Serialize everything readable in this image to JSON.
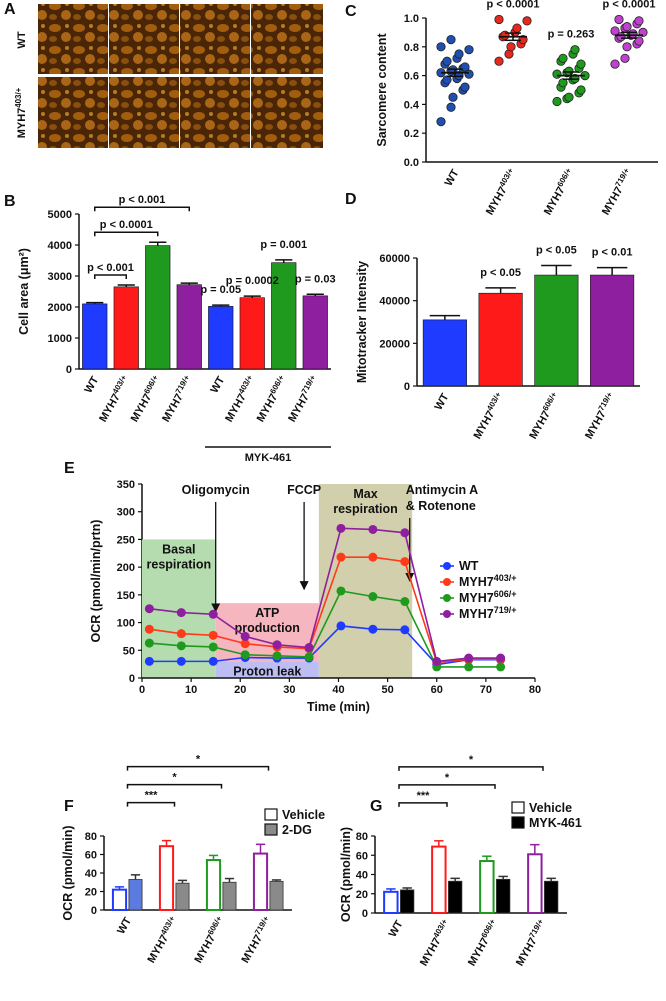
{
  "image_panel": {
    "panel_label": "A",
    "row_labels": [
      "WT",
      "MYH7403/+"
    ]
  },
  "chart_data": [
    {
      "type": "bar",
      "panel_label": "B",
      "y_label": "Cell area (μm²)",
      "categories": [
        "WT",
        "MYH7403/+",
        "MYH7606/+",
        "MYH7719/+",
        "WT",
        "MYH7403/+",
        "MYH7606/+",
        "MYH7719/+"
      ],
      "values": [
        2100,
        2650,
        3980,
        2720,
        2020,
        2300,
        3430,
        2360
      ],
      "errors": [
        40,
        60,
        110,
        50,
        40,
        50,
        90,
        50
      ],
      "colors": [
        "#1f3bff",
        "#ff1a1a",
        "#1f9a1f",
        "#8e1f9e",
        "#1f3bff",
        "#ff1a1a",
        "#1f9a1f",
        "#8e1f9e"
      ],
      "ylim": [
        0,
        5000
      ],
      "yticks": [
        0,
        1000,
        2000,
        3000,
        4000,
        5000
      ],
      "brackets": [
        {
          "text": "p < 0.001",
          "from": 0,
          "to": 1
        },
        {
          "text": "p < 0.0001",
          "from": 0,
          "to": 2
        },
        {
          "text": "p < 0.001",
          "from": 0,
          "to": 3
        }
      ],
      "labels": [
        {
          "text": "p = 0.05",
          "category": 4
        },
        {
          "text": "p = 0.0002",
          "category": 5
        },
        {
          "text": "p = 0.001",
          "category": 6
        },
        {
          "text": "p = 0.03",
          "category": 7
        }
      ],
      "group": {
        "text": "MYK-461",
        "from": 4,
        "to": 7
      }
    },
    {
      "type": "strip",
      "panel_label": "C",
      "y_label": "Sarcomere content",
      "categories": [
        "WT",
        "MYH7403/+",
        "MYH7606/+",
        "MYH7719/+"
      ],
      "colors": [
        "#1f4fb0",
        "#e8281e",
        "#1f9a1f",
        "#c040d0"
      ],
      "points": [
        [
          0.28,
          0.38,
          0.45,
          0.5,
          0.52,
          0.55,
          0.57,
          0.58,
          0.6,
          0.61,
          0.62,
          0.63,
          0.64,
          0.65,
          0.66,
          0.68,
          0.7,
          0.72,
          0.75,
          0.78,
          0.8,
          0.85
        ],
        [
          0.7,
          0.75,
          0.8,
          0.82,
          0.85,
          0.87,
          0.88,
          0.9,
          0.93,
          0.98,
          0.99
        ],
        [
          0.42,
          0.44,
          0.45,
          0.48,
          0.5,
          0.52,
          0.55,
          0.57,
          0.58,
          0.6,
          0.61,
          0.62,
          0.63,
          0.65,
          0.68,
          0.7,
          0.72,
          0.75,
          0.78
        ],
        [
          0.68,
          0.72,
          0.8,
          0.82,
          0.84,
          0.86,
          0.87,
          0.88,
          0.89,
          0.9,
          0.91,
          0.93,
          0.94,
          0.96,
          0.98,
          0.99
        ]
      ],
      "means": [
        0.62,
        0.87,
        0.6,
        0.88
      ],
      "sems": [
        0.025,
        0.025,
        0.025,
        0.02
      ],
      "ylim": [
        0,
        1
      ],
      "yticks": [
        {
          "value": 0,
          "label": "0.0"
        },
        0.2,
        0.4,
        0.6,
        0.8,
        {
          "value": 1,
          "label": "1.0"
        }
      ],
      "labels": [
        {
          "text": "p < 0.0001",
          "category": 1
        },
        {
          "text": "p = 0.263",
          "category": 2
        },
        {
          "text": "p < 0.0001",
          "category": 3
        }
      ]
    },
    {
      "type": "bar",
      "panel_label": "D",
      "y_label": "Mitotracker Intensity",
      "categories": [
        "WT",
        "MYH7403/+",
        "MYH7606/+",
        "MYH7719/+"
      ],
      "values": [
        31000,
        43500,
        52000,
        52000
      ],
      "errors": [
        2000,
        2500,
        4500,
        3500
      ],
      "colors": [
        "#1f3bff",
        "#ff1a1a",
        "#1f9a1f",
        "#8e1f9e"
      ],
      "ylim": [
        0,
        60000
      ],
      "yticks": [
        0,
        20000,
        40000,
        60000
      ],
      "labels": [
        {
          "text": "p < 0.05",
          "category": 1
        },
        {
          "text": "p < 0.05",
          "category": 2
        },
        {
          "text": "p < 0.01",
          "category": 3
        }
      ]
    },
    {
      "type": "line",
      "panel_label": "E",
      "y_label": "OCR (pmol/min/prtn)",
      "x_label": "Time (min)",
      "x": [
        1.5,
        8,
        14.5,
        21,
        27.5,
        34,
        40.5,
        47,
        53.5,
        60,
        66.5,
        73
      ],
      "series": [
        {
          "name": "WT",
          "color": "#1f3bff",
          "values": [
            30,
            30,
            30,
            37,
            36,
            36,
            94,
            88,
            87,
            24,
            33,
            33
          ]
        },
        {
          "name": "MYH7403/+",
          "color": "#ff3a1a",
          "values": [
            88,
            80,
            77,
            62,
            56,
            53,
            218,
            218,
            210,
            28,
            34,
            34
          ]
        },
        {
          "name": "MYH7606/+",
          "color": "#1f9a1f",
          "values": [
            63,
            58,
            56,
            42,
            40,
            38,
            157,
            147,
            138,
            20,
            20,
            20
          ]
        },
        {
          "name": "MYH7719/+",
          "color": "#8e1f9e",
          "values": [
            125,
            118,
            115,
            75,
            60,
            55,
            270,
            268,
            262,
            30,
            36,
            36
          ]
        }
      ],
      "xlim": [
        0,
        80
      ],
      "xticks": [
        0,
        10,
        20,
        30,
        40,
        50,
        60,
        70,
        80
      ],
      "ylim": [
        0,
        350
      ],
      "yticks": [
        0,
        50,
        100,
        150,
        200,
        250,
        300,
        350
      ],
      "regions": [
        {
          "label": [
            "Basal",
            "respiration"
          ],
          "x": [
            0,
            15
          ],
          "y": [
            0,
            250
          ],
          "color": "#b5dcae"
        },
        {
          "label": [
            "ATP",
            "production"
          ],
          "x": [
            15,
            36
          ],
          "y": [
            30,
            135
          ],
          "color": "#f6b6bf"
        },
        {
          "label": [
            "Proton leak"
          ],
          "x": [
            15,
            36
          ],
          "y": [
            0,
            30
          ],
          "color": "#bcbdf2"
        },
        {
          "label": [
            "Max",
            "respiration"
          ],
          "x": [
            36,
            55
          ],
          "y": [
            0,
            350
          ],
          "color": "#d2cfad"
        }
      ],
      "annotations": [
        {
          "text": [
            "Oligomycin"
          ],
          "x": 15,
          "y": 120
        },
        {
          "text": [
            "FCCP"
          ],
          "x": 33,
          "y": 160
        },
        {
          "text": [
            "Antimycin A",
            "& Rotenone"
          ],
          "x": 54.5,
          "y": 175
        }
      ]
    },
    {
      "type": "grouped-bar",
      "panel_label": "F",
      "y_label": "OCR (pmol/min)",
      "categories": [
        "WT",
        "MYH7403/+",
        "MYH7606/+",
        "MYH7719/+"
      ],
      "colors": [
        "#1f3bff",
        "#ff1a1a",
        "#1f9a1f",
        "#8e1f9e"
      ],
      "series": [
        {
          "name": "Vehicle",
          "color": "#ffffff",
          "values": [
            22,
            69,
            54,
            61
          ],
          "errors": [
            3,
            6,
            5,
            10
          ]
        },
        {
          "name": "2-DG",
          "color": "#8a8a8a",
          "colors": [
            "#5b7be0",
            "#8a8a8a",
            "#8a8a8a",
            "#8a8a8a"
          ],
          "values": [
            33,
            29,
            30,
            31
          ],
          "errors": [
            5,
            3,
            4,
            1.5
          ]
        }
      ],
      "ylim": [
        0,
        80
      ],
      "yticks": [
        0,
        20,
        40,
        60,
        80
      ],
      "brackets": [
        {
          "text": "***",
          "from": 0,
          "to": 1
        },
        {
          "text": "*",
          "from": 0,
          "to": 2
        },
        {
          "text": "*",
          "from": 0,
          "to": 3
        }
      ]
    },
    {
      "type": "grouped-bar",
      "panel_label": "G",
      "y_label": "OCR (pmol/min)",
      "categories": [
        "WT",
        "MYH7403/+",
        "MYH7606/+",
        "MYH7719/+"
      ],
      "colors": [
        "#1f3bff",
        "#ff1a1a",
        "#1f9a1f",
        "#8e1f9e"
      ],
      "series": [
        {
          "name": "Vehicle",
          "color": "#ffffff",
          "values": [
            22,
            69,
            54,
            61
          ],
          "errors": [
            3,
            6,
            5,
            10
          ]
        },
        {
          "name": "MYK-461",
          "color": "#000000",
          "values": [
            24,
            33,
            35,
            33
          ],
          "errors": [
            2,
            3,
            3,
            3
          ]
        }
      ],
      "ylim": [
        0,
        80
      ],
      "yticks": [
        0,
        20,
        40,
        60,
        80
      ],
      "brackets": [
        {
          "text": "***",
          "from": 0,
          "to": 1
        },
        {
          "text": "*",
          "from": 0,
          "to": 2
        },
        {
          "text": "*",
          "from": 0,
          "to": 3
        }
      ]
    }
  ]
}
